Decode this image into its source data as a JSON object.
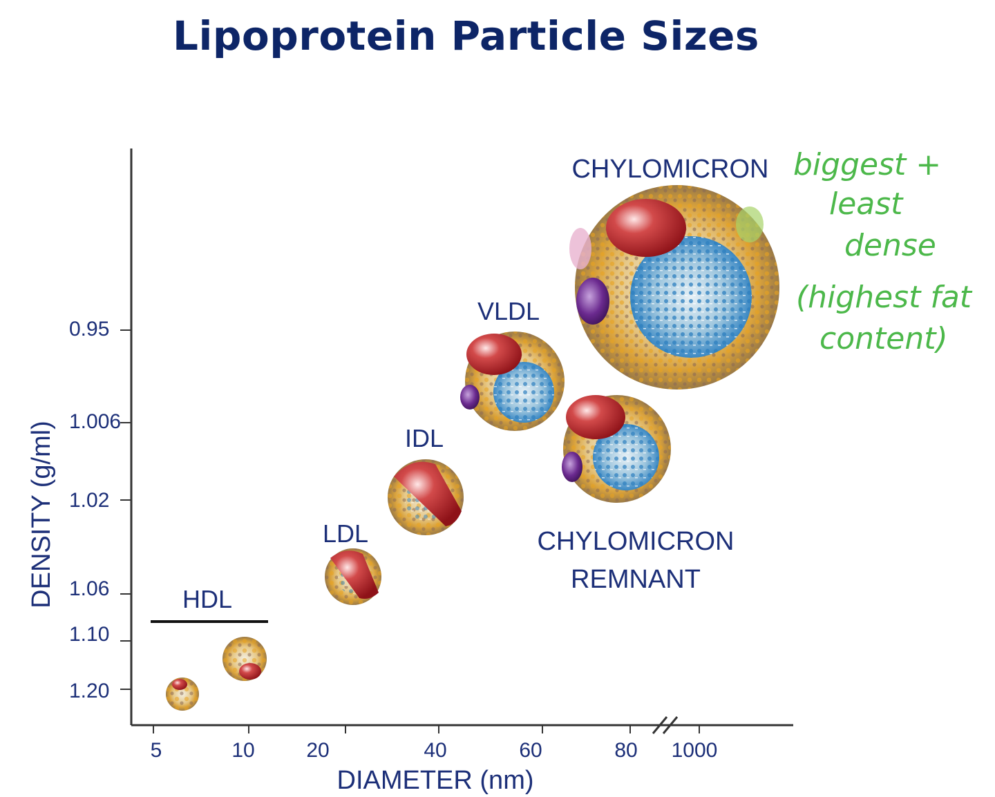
{
  "title": "Lipoprotein Particle Sizes",
  "axes": {
    "xlabel": "DIAMETER (nm)",
    "ylabel": "DENSITY (g/ml)",
    "x_ticks": [
      "5",
      "10",
      "20",
      "40",
      "60",
      "80",
      "1000"
    ],
    "y_ticks": [
      "0.95",
      "1.006",
      "1.02",
      "1.06",
      "1.10",
      "1.20"
    ],
    "x_axis_break": true
  },
  "particles": [
    {
      "id": "hdl",
      "label": "HDL"
    },
    {
      "id": "ldl",
      "label": "LDL"
    },
    {
      "id": "idl",
      "label": "IDL"
    },
    {
      "id": "vldl",
      "label": "VLDL"
    },
    {
      "id": "chylomicron",
      "label": "CHYLOMICRON"
    },
    {
      "id": "remnant",
      "label_lines": [
        "CHYLOMICRON",
        "REMNANT"
      ]
    }
  ],
  "annotation": {
    "lines": [
      "biggest +",
      "least",
      "dense",
      "(highest fat",
      "content)"
    ],
    "color": "#4cb84a"
  },
  "colors": {
    "navy": "#1c2f78",
    "shell": "#e0a640",
    "protein_red": "#b01e24",
    "protein_purple": "#6b2a8f",
    "core_blue": "#3a88c4"
  }
}
